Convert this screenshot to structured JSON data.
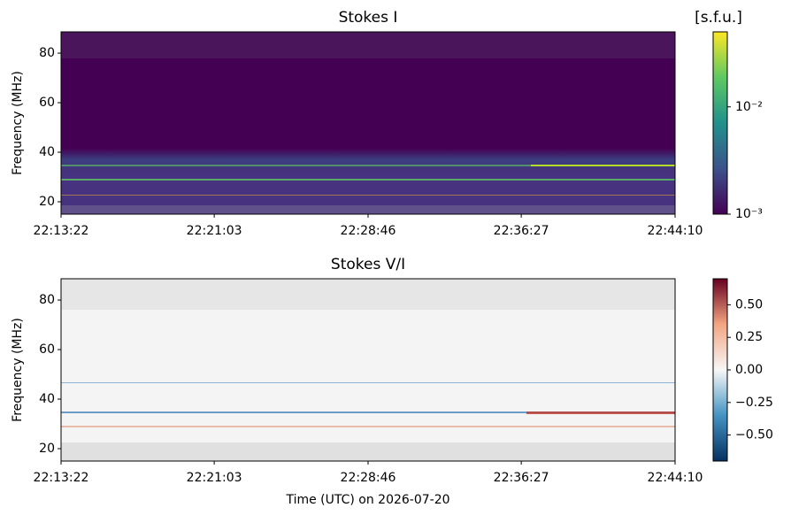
{
  "chart_data": [
    {
      "type": "heatmap",
      "title": "Stokes I",
      "ylabel": "Frequency (MHz)",
      "xlim": [
        "22:13:22",
        "22:44:10"
      ],
      "xticks": [
        "22:13:22",
        "22:21:03",
        "22:28:46",
        "22:36:27",
        "22:44:10"
      ],
      "ylim": [
        15,
        88.6
      ],
      "yticks": [
        20,
        40,
        60,
        80
      ],
      "colorbar": {
        "label": "[s.f.u.]",
        "colormap": "viridis",
        "scale": "log",
        "clim": [
          0.001,
          0.05
        ],
        "ticks": [
          {
            "value": 0.01,
            "label": "10⁻²"
          },
          {
            "value": 0.001,
            "label": "10⁻³"
          }
        ]
      }
    },
    {
      "type": "heatmap",
      "title": "Stokes V/I",
      "ylabel": "Frequency (MHz)",
      "xlabel": "Time (UTC) on 2026-07-20",
      "xlim": [
        "22:13:22",
        "22:44:10"
      ],
      "xticks": [
        "22:13:22",
        "22:21:03",
        "22:28:46",
        "22:36:27",
        "22:44:10"
      ],
      "ylim": [
        15,
        88.6
      ],
      "yticks": [
        20,
        40,
        60,
        80
      ],
      "colorbar": {
        "colormap": "RdBu_r",
        "scale": "linear",
        "clim": [
          -0.7,
          0.7
        ],
        "ticks": [
          {
            "value": 0.5,
            "label": "0.50"
          },
          {
            "value": 0.25,
            "label": "0.25"
          },
          {
            "value": 0,
            "label": "0.00"
          },
          {
            "value": -0.25,
            "label": "−0.25"
          },
          {
            "value": -0.5,
            "label": "−0.50"
          }
        ]
      }
    }
  ]
}
